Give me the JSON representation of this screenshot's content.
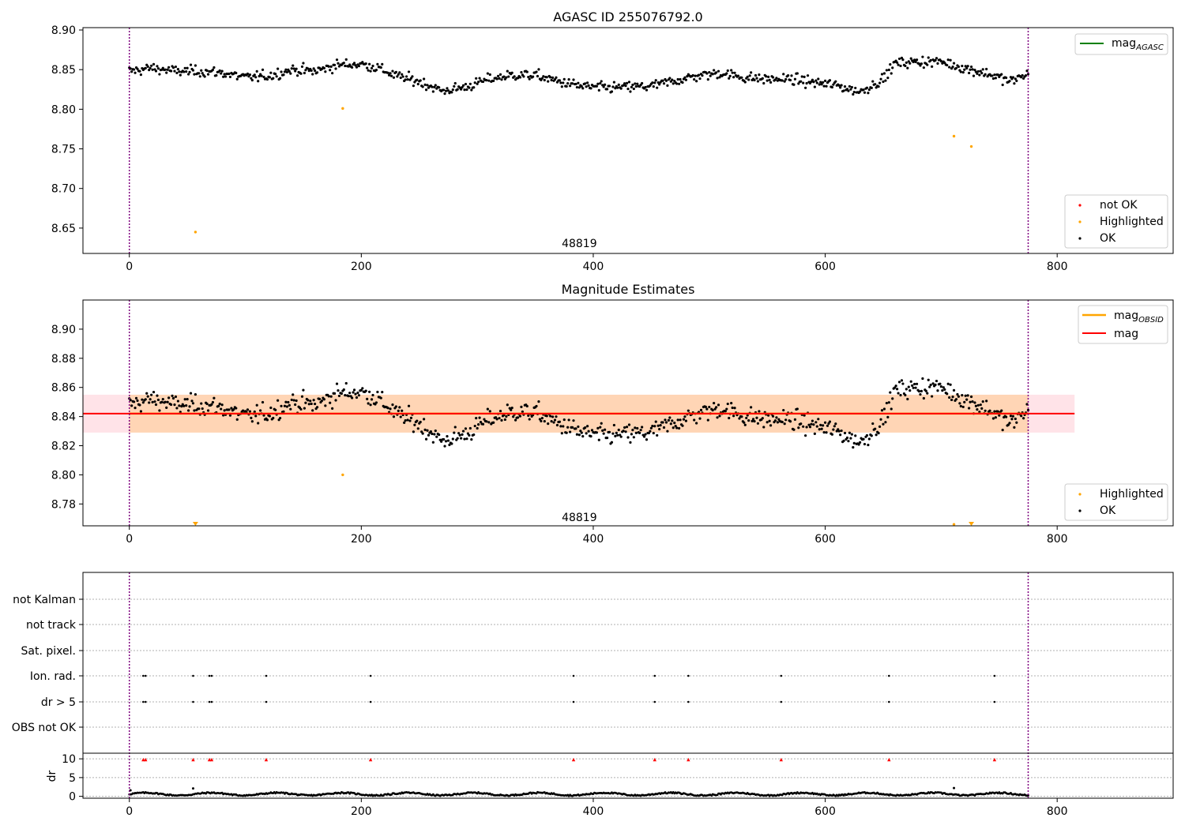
{
  "chart_data": [
    {
      "type": "scatter",
      "title": "AGASC ID 255076792.0",
      "xlim": [
        -40,
        900
      ],
      "ylim": [
        8.618,
        8.903
      ],
      "xticks": [
        0,
        200,
        400,
        600,
        800
      ],
      "yticks": [
        8.65,
        8.7,
        8.75,
        8.8,
        8.85,
        8.9
      ],
      "ytick_labels": [
        "8.65",
        "8.70",
        "8.75",
        "8.80",
        "8.85",
        "8.90"
      ],
      "vlines": [
        0,
        775
      ],
      "annotation": {
        "text": "48819",
        "x": 388,
        "y": 8.631
      },
      "line_legend": [
        {
          "label": "mag",
          "sub": "AGASC",
          "color": "#008000"
        }
      ],
      "marker_legend": [
        {
          "label": "not OK",
          "color": "#ff0000"
        },
        {
          "label": "Highlighted",
          "color": "#ffa500"
        },
        {
          "label": "OK",
          "color": "#000000"
        }
      ],
      "highlighted": [
        [
          57,
          8.645
        ],
        [
          184,
          8.801
        ],
        [
          711,
          8.766
        ],
        [
          726,
          8.753
        ]
      ],
      "ok_series": {
        "name": "OK",
        "n": 776,
        "x_range": [
          0,
          776
        ],
        "anchors_x": [
          0,
          20,
          40,
          60,
          80,
          100,
          120,
          140,
          160,
          180,
          200,
          215,
          230,
          250,
          270,
          290,
          310,
          330,
          350,
          370,
          390,
          410,
          430,
          450,
          470,
          490,
          510,
          530,
          550,
          570,
          590,
          610,
          630,
          650,
          660,
          680,
          700,
          720,
          740,
          760,
          776
        ],
        "anchors_y": [
          8.848,
          8.852,
          8.848,
          8.848,
          8.846,
          8.84,
          8.842,
          8.85,
          8.848,
          8.856,
          8.857,
          8.852,
          8.842,
          8.835,
          8.823,
          8.828,
          8.838,
          8.843,
          8.843,
          8.835,
          8.829,
          8.827,
          8.828,
          8.829,
          8.836,
          8.842,
          8.846,
          8.84,
          8.838,
          8.838,
          8.834,
          8.83,
          8.822,
          8.838,
          8.858,
          8.86,
          8.86,
          8.852,
          8.845,
          8.835,
          8.846
        ],
        "scatter": 0.0085
      }
    },
    {
      "type": "scatter",
      "title": "Magnitude Estimates",
      "xlim": [
        -40,
        900
      ],
      "ylim": [
        8.765,
        8.92
      ],
      "xticks": [
        0,
        200,
        400,
        600,
        800
      ],
      "yticks": [
        8.78,
        8.8,
        8.82,
        8.84,
        8.86,
        8.88,
        8.9
      ],
      "ytick_labels": [
        "8.78",
        "8.80",
        "8.82",
        "8.84",
        "8.86",
        "8.88",
        "8.90"
      ],
      "vlines": [
        0,
        775
      ],
      "annotation": {
        "text": "48819",
        "x": 388,
        "y": 8.771
      },
      "mag_mean": 8.842,
      "mag_band": [
        8.829,
        8.855
      ],
      "band_x_end": 815,
      "line_legend": [
        {
          "label": "mag",
          "sub": "OBSID",
          "color": "#ffa500"
        },
        {
          "label": "mag",
          "sub": "",
          "color": "#ff0000"
        }
      ],
      "marker_legend": [
        {
          "label": "Highlighted",
          "color": "#ffa500"
        },
        {
          "label": "OK",
          "color": "#000000"
        }
      ],
      "highlighted": [
        [
          184,
          8.8
        ],
        [
          711,
          8.766
        ]
      ],
      "clipped_markers_x": [
        57,
        726
      ]
    },
    {
      "type": "scatter",
      "title": "",
      "xlim": [
        -40,
        900
      ],
      "xticks": [
        0,
        200,
        400,
        600,
        800
      ],
      "vlines": [
        0,
        775
      ],
      "flag_rows": [
        "not Kalman",
        "not track",
        "Sat. pixel.",
        "Ion. rad.",
        "dr > 5",
        "OBS not OK"
      ],
      "flag_events_x": [
        12,
        14,
        55,
        69,
        71,
        118,
        208,
        383,
        453,
        482,
        562,
        655,
        746
      ],
      "dr": {
        "ylabel": "dr",
        "ylim": [
          -0.5,
          11.5
        ],
        "yticks": [
          0,
          5,
          10
        ],
        "ytick_labels": [
          "0",
          "5",
          "10"
        ],
        "baseline_level": 0.6,
        "outliers": [
          [
            55,
            2.1
          ],
          [
            711,
            2.2
          ],
          [
            1,
            1.6
          ]
        ],
        "red_marks_x": [
          12,
          14,
          55,
          69,
          71,
          118,
          208,
          383,
          453,
          482,
          562,
          655,
          746
        ]
      }
    }
  ]
}
